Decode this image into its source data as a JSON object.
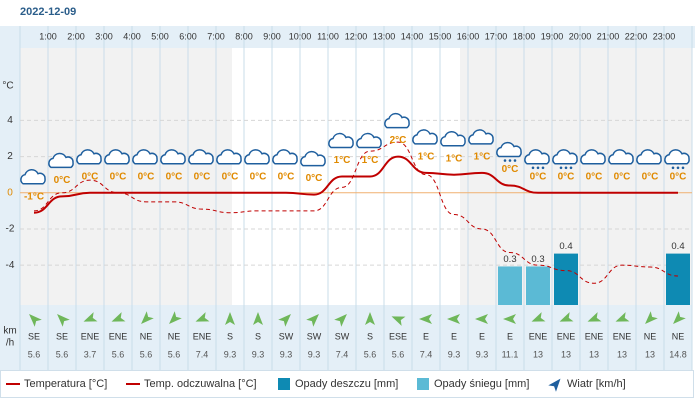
{
  "date": "2022-12-09",
  "chart_data": {
    "type": "line",
    "x_labels": [
      "1:00",
      "2:00",
      "3:00",
      "4:00",
      "5:00",
      "6:00",
      "7:00",
      "8:00",
      "9:00",
      "10:00",
      "11:00",
      "12:00",
      "13:00",
      "14:00",
      "15:00",
      "16:00",
      "17:00",
      "18:00",
      "19:00",
      "20:00",
      "21:00",
      "22:00",
      "23:00"
    ],
    "y_unit": "°C",
    "ylim": [
      -6.2,
      8
    ],
    "yticks": [
      -4,
      -2,
      0,
      2,
      4
    ],
    "y2lim": [
      0,
      2
    ],
    "series": [
      {
        "name": "Temperatura [°C]",
        "color": "#c00000",
        "dashed": false,
        "values": [
          -1.1,
          -0.2,
          0,
          0,
          0,
          0,
          0,
          0,
          0,
          0,
          -0.1,
          0.9,
          0.9,
          2,
          1.1,
          1,
          1.1,
          0.4,
          0,
          0,
          0,
          0,
          0,
          0
        ],
        "value_labels": [
          "-1°C",
          "0°C",
          "0°C",
          "0°C",
          "0°C",
          "0°C",
          "0°C",
          "0°C",
          "0°C",
          "0°C",
          "0°C",
          "1°C",
          "1°C",
          "2°C",
          "1°C",
          "1°C",
          "1°C",
          "0°C",
          "0°C",
          "0°C",
          "0°C",
          "0°C",
          "0°C",
          "0°C"
        ]
      },
      {
        "name": "Temp. odczuwalna [°C]",
        "color": "#c00000",
        "dashed": true,
        "values": [
          -1,
          0,
          0.7,
          0,
          -0.5,
          -0.5,
          -0.9,
          -1.1,
          -1,
          -1,
          -1,
          0.3,
          2.3,
          2.8,
          1,
          -1.2,
          -2,
          -3.3,
          -4,
          -4.3,
          -5,
          -4,
          -4.1,
          -4.6
        ]
      },
      {
        "name": "Opady deszczu [mm]",
        "color": "#0e8ab3",
        "type": "bar",
        "axis": "y2",
        "values": [
          null,
          null,
          null,
          null,
          null,
          null,
          null,
          null,
          null,
          null,
          null,
          null,
          null,
          null,
          null,
          null,
          null,
          null,
          null,
          0.4,
          null,
          null,
          null,
          0.4
        ]
      },
      {
        "name": "Opady śniegu [mm]",
        "color": "#5bbad5",
        "type": "bar",
        "axis": "y2",
        "values": [
          null,
          null,
          null,
          null,
          null,
          null,
          null,
          null,
          null,
          null,
          null,
          null,
          null,
          null,
          null,
          null,
          null,
          0.3,
          0.3,
          null,
          null,
          null,
          null,
          null
        ]
      }
    ],
    "wind": {
      "name": "Wiatr [km/h]",
      "unit_top": "km",
      "unit_bottom": "/h",
      "directions": [
        "SE",
        "SE",
        "ENE",
        "ENE",
        "NE",
        "NE",
        "ENE",
        "S",
        "S",
        "SW",
        "SW",
        "SW",
        "S",
        "ESE",
        "E",
        "E",
        "E",
        "E",
        "ENE",
        "ENE",
        "ENE",
        "ENE",
        "NE",
        "NE"
      ],
      "speeds": [
        5.6,
        5.6,
        3.7,
        5.6,
        5.6,
        5.6,
        7.4,
        9.3,
        9.3,
        9.3,
        9.3,
        7.4,
        5.6,
        5.6,
        7.4,
        9.3,
        9.3,
        11.1,
        13,
        13,
        13,
        13,
        13,
        14.8
      ]
    }
  }
}
